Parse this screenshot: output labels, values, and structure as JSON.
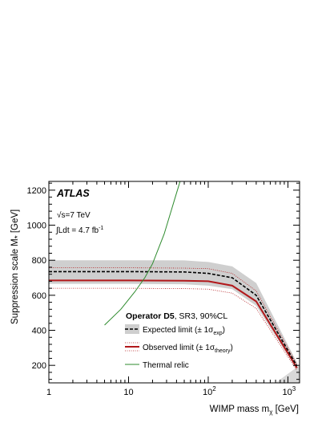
{
  "chart_data": {
    "type": "line",
    "xscale": "log",
    "xlim": [
      1,
      1400
    ],
    "ylim": [
      100,
      1250
    ],
    "xlabel_main": "WIMP mass m",
    "xlabel_sub": "χ",
    "xlabel_unit": " [GeV]",
    "ylabel_main": "Suppression scale M",
    "ylabel_sub": "*",
    "ylabel_unit": " [GeV]",
    "x_ticks": [
      {
        "value": 1,
        "label": "1"
      },
      {
        "value": 10,
        "label": "10"
      },
      {
        "value": 100,
        "label": "10",
        "sup": "2"
      },
      {
        "value": 1000,
        "label": "10",
        "sup": "3"
      }
    ],
    "y_ticks": [
      200,
      400,
      600,
      800,
      1000,
      1200
    ],
    "grid": false,
    "experiment": "ATLAS",
    "energy_label": "√s=7 TeV",
    "lumi_label": "∫Ldt = 4.7 fb",
    "lumi_sup": "-1",
    "legend": {
      "placement": "lower-center",
      "title_bold": "Operator D5",
      "title_rest": ", SR3, 90%CL",
      "expected_label": "Expected limit (± 1σ",
      "expected_sub": "exp",
      "observed_label": "Observed limit (± 1σ",
      "observed_sub": "theory",
      "thermal_label": "Thermal relic"
    },
    "series": [
      {
        "name": "Expected limit",
        "style": "dashed",
        "color": "#000000",
        "x": [
          1,
          10,
          50,
          100,
          200,
          400,
          1300
        ],
        "y": [
          735,
          735,
          733,
          725,
          700,
          600,
          195
        ],
        "band_upper": [
          800,
          800,
          799,
          790,
          765,
          670,
          215
        ],
        "band_lower": [
          665,
          665,
          663,
          655,
          635,
          540,
          175
        ]
      },
      {
        "name": "Observed limit",
        "style": "solid",
        "color": "#b2181b",
        "x": [
          1,
          10,
          50,
          100,
          200,
          400,
          1300
        ],
        "y": [
          685,
          685,
          683,
          680,
          655,
          565,
          185
        ],
        "band_upper": [
          757,
          757,
          755,
          752,
          725,
          625,
          205
        ],
        "band_lower": [
          640,
          640,
          638,
          635,
          612,
          525,
          170
        ]
      },
      {
        "name": "Thermal relic",
        "style": "solid",
        "color": "#2e8b2e",
        "x": [
          5,
          8,
          12,
          16,
          20,
          28,
          38,
          45
        ],
        "y": [
          430,
          520,
          620,
          700,
          780,
          950,
          1150,
          1260
        ]
      }
    ],
    "excluded_corner": {
      "x": [
        700,
        1400
      ],
      "y": [
        100,
        200
      ],
      "color": "#d8d8d8"
    },
    "colors": {
      "expected_band": "#cfcfcf",
      "observed_line": "#b2181b",
      "thermal": "#2e8b2e"
    }
  }
}
